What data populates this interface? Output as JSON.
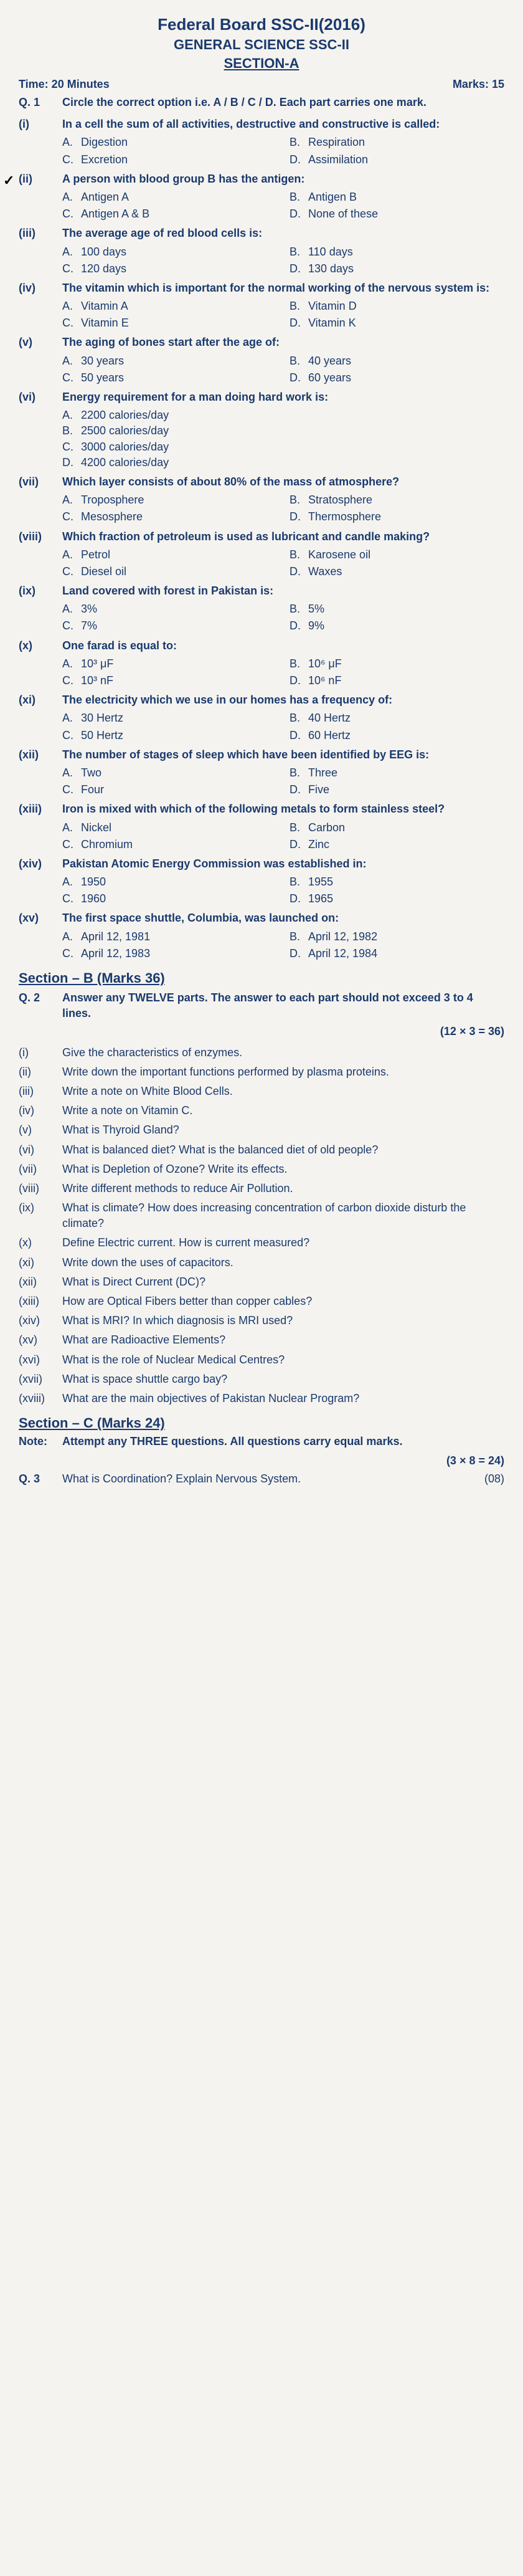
{
  "header": {
    "title": "Federal Board SSC-II(2016)",
    "subtitle": "GENERAL SCIENCE SSC-II",
    "section": "SECTION-A"
  },
  "meta": {
    "time": "Time: 20 Minutes",
    "marks": "Marks: 15"
  },
  "q1": {
    "num": "Q. 1",
    "text": "Circle the correct option i.e. A / B / C / D. Each part carries one mark."
  },
  "mcq": [
    {
      "num": "(i)",
      "stem": "In a cell the sum of all activities, destructive and constructive is called:",
      "opts": [
        "Digestion",
        "Respiration",
        "Excretion",
        "Assimilation"
      ]
    },
    {
      "num": "(ii)",
      "stem": "A person with blood group B has the antigen:",
      "opts": [
        "Antigen A",
        "Antigen B",
        "Antigen A & B",
        "None of these"
      ],
      "check": true
    },
    {
      "num": "(iii)",
      "stem": "The average age of red blood cells is:",
      "opts": [
        "100 days",
        "110 days",
        "120 days",
        "130 days"
      ]
    },
    {
      "num": "(iv)",
      "stem": "The vitamin which is important for the normal working of the nervous system is:",
      "opts": [
        "Vitamin A",
        "Vitamin D",
        "Vitamin E",
        "Vitamin K"
      ]
    },
    {
      "num": "(v)",
      "stem": "The aging of bones start after the age of:",
      "opts": [
        "30 years",
        "40 years",
        "50 years",
        "60 years"
      ]
    },
    {
      "num": "(vi)",
      "stem": "Energy requirement for a man doing hard work is:",
      "opts": [
        "2200 calories/day",
        "",
        "2500 calories/day",
        "",
        "3000 calories/day",
        "",
        "4200 calories/day",
        ""
      ],
      "single": true
    },
    {
      "num": "(vii)",
      "stem": "Which layer consists of about 80% of the mass of atmosphere?",
      "opts": [
        "Troposphere",
        "Stratosphere",
        "Mesosphere",
        "Thermosphere"
      ]
    },
    {
      "num": "(viii)",
      "stem": "Which fraction of petroleum is used as lubricant and candle making?",
      "opts": [
        "Petrol",
        "Karosene oil",
        "Diesel oil",
        "Waxes"
      ]
    },
    {
      "num": "(ix)",
      "stem": "Land covered with forest in Pakistan is:",
      "opts": [
        "3%",
        "5%",
        "7%",
        "9%"
      ]
    },
    {
      "num": "(x)",
      "stem": "One farad is equal to:",
      "opts": [
        "10³ μF",
        "10⁶ μF",
        "10³ nF",
        "10⁶ nF"
      ]
    },
    {
      "num": "(xi)",
      "stem": "The electricity which we use in our homes has a frequency of:",
      "opts": [
        "30 Hertz",
        "40 Hertz",
        "50 Hertz",
        "60 Hertz"
      ]
    },
    {
      "num": "(xii)",
      "stem": "The number of stages of sleep which have been identified by EEG is:",
      "opts": [
        "Two",
        "Three",
        "Four",
        "Five"
      ]
    },
    {
      "num": "(xiii)",
      "stem": "Iron is mixed with which of the following metals to form stainless steel?",
      "opts": [
        "Nickel",
        "Carbon",
        "Chromium",
        "Zinc"
      ]
    },
    {
      "num": "(xiv)",
      "stem": "Pakistan Atomic Energy Commission was established in:",
      "opts": [
        "1950",
        "1955",
        "1960",
        "1965"
      ]
    },
    {
      "num": "(xv)",
      "stem": "The first space shuttle, Columbia, was launched on:",
      "opts": [
        "April 12, 1981",
        "April 12, 1982",
        "April 12, 1983",
        "April 12, 1984"
      ]
    }
  ],
  "sectionB": {
    "title": "Section – B (Marks 36)",
    "q2num": "Q. 2",
    "q2text": "Answer any TWELVE parts. The answer to each part should not exceed 3 to 4 lines.",
    "formula": "(12 × 3 = 36)",
    "items": [
      {
        "num": "(i)",
        "text": "Give the characteristics of enzymes."
      },
      {
        "num": "(ii)",
        "text": "Write down the important functions performed by plasma proteins."
      },
      {
        "num": "(iii)",
        "text": "Write a note on White Blood Cells."
      },
      {
        "num": "(iv)",
        "text": "Write a note on Vitamin C."
      },
      {
        "num": "(v)",
        "text": "What is Thyroid Gland?"
      },
      {
        "num": "(vi)",
        "text": "What is balanced diet? What is the balanced diet of old people?"
      },
      {
        "num": "(vii)",
        "text": "What is Depletion of Ozone? Write its effects."
      },
      {
        "num": "(viii)",
        "text": "Write different methods to reduce Air Pollution."
      },
      {
        "num": "(ix)",
        "text": "What is climate? How does increasing concentration of carbon dioxide disturb the climate?"
      },
      {
        "num": "(x)",
        "text": "Define Electric current. How is current measured?"
      },
      {
        "num": "(xi)",
        "text": "Write down the uses of capacitors."
      },
      {
        "num": "(xii)",
        "text": "What is Direct Current (DC)?"
      },
      {
        "num": "(xiii)",
        "text": "How are Optical Fibers better than copper cables?"
      },
      {
        "num": "(xiv)",
        "text": "What is MRI? In which diagnosis is MRI used?"
      },
      {
        "num": "(xv)",
        "text": "What are Radioactive Elements?"
      },
      {
        "num": "(xvi)",
        "text": "What is the role of Nuclear Medical Centres?"
      },
      {
        "num": "(xvii)",
        "text": "What is space shuttle cargo bay?"
      },
      {
        "num": "(xviii)",
        "text": "What are the main objectives of Pakistan Nuclear Program?"
      }
    ]
  },
  "sectionC": {
    "title": "Section – C (Marks 24)",
    "noteLabel": "Note:",
    "noteText": "Attempt any THREE questions. All questions carry equal marks.",
    "formula": "(3 × 8 = 24)",
    "q3num": "Q. 3",
    "q3text": "What is Coordination? Explain Nervous System.",
    "q3marks": "(08)"
  }
}
